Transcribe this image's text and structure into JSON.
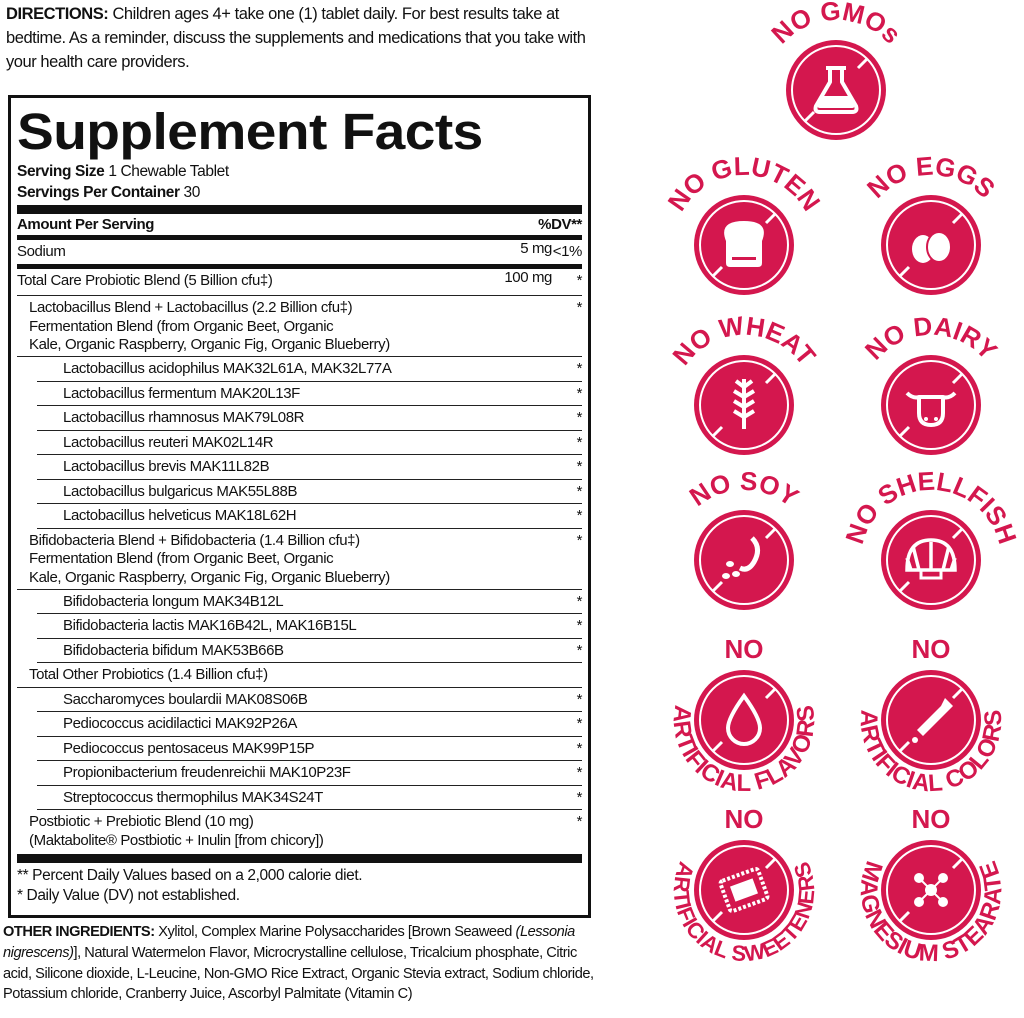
{
  "directions": {
    "label": "DIRECTIONS:",
    "text": " Children ages 4+ take one (1) tablet daily. For best results take at bedtime. As a reminder, discuss the supplements and medications that you take with your health care providers."
  },
  "facts": {
    "title": "Supplement Facts",
    "serving_size_label": "Serving Size",
    "serving_size": "1 Chewable Tablet",
    "servings_label": "Servings Per Container",
    "servings": "30",
    "amount_header": "Amount Per Serving",
    "dv_header": "%DV**",
    "rows": [
      {
        "name": "Sodium",
        "amount": "5 mg",
        "dv": "<1%",
        "level": 0,
        "h": 29,
        "sep": "mid"
      },
      {
        "name": "Total Care Probiotic Blend (5 Billion cfu‡)",
        "amount": "100 mg",
        "dv": "*",
        "level": 0,
        "h": 27
      },
      {
        "name": "Lactobacillus Blend + Lactobacillus (2.2 Billion cfu‡)\nFermentation Blend (from Organic Beet, Organic\nKale, Organic Raspberry, Organic Fig, Organic Blueberry)",
        "amount": "",
        "dv": "*",
        "level": 1,
        "h": 61
      },
      {
        "name": "Lactobacillus acidophilus MAK32L61A, MAK32L77A",
        "amount": "",
        "dv": "*",
        "level": 2,
        "h": 24.5
      },
      {
        "name": "Lactobacillus fermentum MAK20L13F",
        "amount": "",
        "dv": "*",
        "level": 2,
        "h": 24.5
      },
      {
        "name": "Lactobacillus rhamnosus MAK79L08R",
        "amount": "",
        "dv": "*",
        "level": 2,
        "h": 24.5
      },
      {
        "name": "Lactobacillus reuteri MAK02L14R",
        "amount": "",
        "dv": "*",
        "level": 2,
        "h": 24.5
      },
      {
        "name": "Lactobacillus brevis MAK11L82B",
        "amount": "",
        "dv": "*",
        "level": 2,
        "h": 24.5
      },
      {
        "name": "Lactobacillus bulgaricus MAK55L88B",
        "amount": "",
        "dv": "*",
        "level": 2,
        "h": 24.5
      },
      {
        "name": "Lactobacillus helveticus MAK18L62H",
        "amount": "",
        "dv": "*",
        "level": 2,
        "h": 24.5
      },
      {
        "name": "Bifidobacteria Blend + Bifidobacteria (1.4 Billion cfu‡)\nFermentation Blend (from Organic Beet, Organic\nKale, Organic Raspberry, Organic Fig, Organic Blueberry)",
        "amount": "",
        "dv": "*",
        "level": 1,
        "h": 61
      },
      {
        "name": "Bifidobacteria longum MAK34B12L",
        "amount": "",
        "dv": "*",
        "level": 2,
        "h": 24.5
      },
      {
        "name": "Bifidobacteria lactis MAK16B42L, MAK16B15L",
        "amount": "",
        "dv": "*",
        "level": 2,
        "h": 24.5
      },
      {
        "name": "Bifidobacteria bifidum MAK53B66B",
        "amount": "",
        "dv": "*",
        "level": 2,
        "h": 24.5
      },
      {
        "name": "Total Other Probiotics (1.4 Billion cfu‡)",
        "amount": "",
        "dv": "",
        "level": 1,
        "h": 24.5
      },
      {
        "name": "Saccharomyces boulardii MAK08S06B",
        "amount": "",
        "dv": "*",
        "level": 2,
        "h": 24.5
      },
      {
        "name": "Pediococcus acidilactici MAK92P26A",
        "amount": "",
        "dv": "*",
        "level": 2,
        "h": 24.5
      },
      {
        "name": "Pediococcus pentosaceus MAK99P15P",
        "amount": "",
        "dv": "*",
        "level": 2,
        "h": 24.5
      },
      {
        "name": "Propionibacterium freudenreichii MAK10P23F",
        "amount": "",
        "dv": "*",
        "level": 2,
        "h": 24.5
      },
      {
        "name": "Streptococcus thermophilus MAK34S24T",
        "amount": "",
        "dv": "*",
        "level": 2,
        "h": 24.5
      },
      {
        "name": "Postbiotic + Prebiotic Blend (10 mg)\n(Maktabolite® Postbiotic + Inulin [from chicory])",
        "amount": "",
        "dv": "*",
        "level": 1,
        "h": 42,
        "nob": true
      }
    ],
    "footnote_1": "** Percent Daily Values based on a 2,000 calorie diet.",
    "footnote_2": "* Daily Value (DV) not established."
  },
  "other_ingredients": {
    "label": "OTHER INGREDIENTS:",
    "text_1": " Xylitol, Complex Marine Polysaccharides [Brown Seaweed ",
    "italic_1": "(Lessonia nigrescens)",
    "text_2": "], Natural Watermelon Flavor, Microcrystalline cellulose, Tricalcium phosphate, Citric acid, Silicone dioxide, L-Leucine, Non-GMO Rice Extract, Organic Stevia extract, Sodium chloride, Potassium chloride, Cranberry Juice, Ascorbyl Palmitate (Vitamin C)"
  },
  "badge_color": "#d4174e",
  "badges": [
    {
      "top": "NO GMOs",
      "no": "",
      "arc": "",
      "icon": "flask-icon"
    },
    {
      "top": "NO GLUTEN",
      "no": "",
      "arc": "",
      "icon": "bread-icon"
    },
    {
      "top": "NO EGGS",
      "no": "",
      "arc": "",
      "icon": "eggs-icon"
    },
    {
      "top": "NO WHEAT",
      "no": "",
      "arc": "",
      "icon": "wheat-icon"
    },
    {
      "top": "NO DAIRY",
      "no": "",
      "arc": "",
      "icon": "cow-icon"
    },
    {
      "top": "NO SOY",
      "no": "",
      "arc": "",
      "icon": "soybean-icon"
    },
    {
      "top": "NO SHELLFISH",
      "no": "",
      "arc": "",
      "icon": "shell-icon"
    },
    {
      "top": "",
      "no": "NO",
      "arc": "ARTIFICIAL FLAVORS",
      "icon": "drop-icon"
    },
    {
      "top": "",
      "no": "NO",
      "arc": "ARTIFICIAL COLORS",
      "icon": "dropper-icon"
    },
    {
      "top": "",
      "no": "NO",
      "arc": "ARTIFICIAL SWEETENERS",
      "icon": "sweetener-packet-icon"
    },
    {
      "top": "",
      "no": "NO",
      "arc": "MAGNESIUM STEARATE",
      "icon": "molecule-icon"
    }
  ]
}
